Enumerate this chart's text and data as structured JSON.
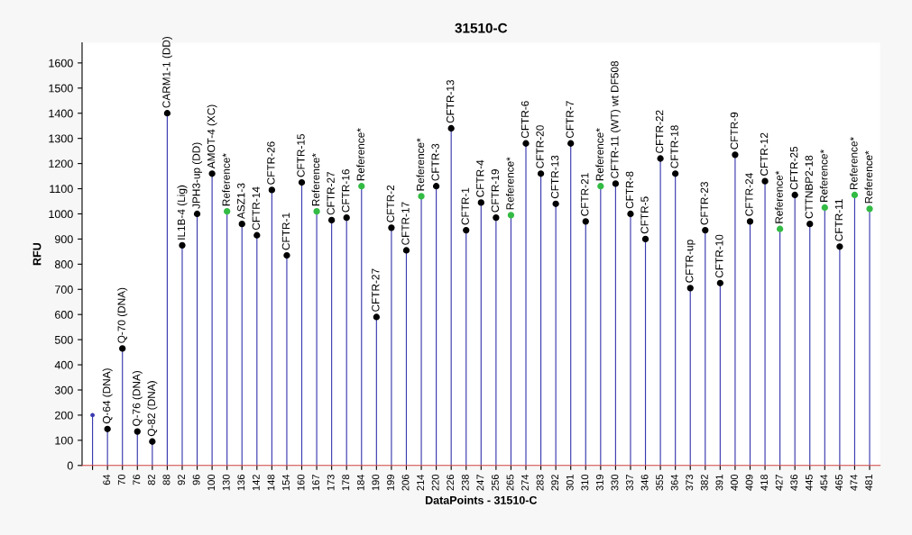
{
  "chart_data": {
    "type": "lollipop",
    "title": "31510-C",
    "xlabel": "DataPoints - 31510-C",
    "ylabel": "RFU",
    "categories": [
      null,
      "64",
      "70",
      "76",
      "82",
      "88",
      "92",
      "96",
      "100",
      "130",
      "136",
      "142",
      "148",
      "154",
      "160",
      "167",
      "173",
      "178",
      "184",
      "190",
      "199",
      "206",
      "214",
      "220",
      "226",
      "238",
      "247",
      "256",
      "265",
      "274",
      "283",
      "292",
      "301",
      "310",
      "319",
      "330",
      "337",
      "346",
      "355",
      "364",
      "373",
      "382",
      "391",
      "400",
      "409",
      "418",
      "427",
      "436",
      "445",
      "454",
      "465",
      "474",
      "481"
    ],
    "series": [
      {
        "color": "#3b3bb0",
        "values": [
          200,
          145,
          465,
          135,
          95,
          1400,
          875,
          1000,
          1160,
          1010,
          960,
          915,
          1095,
          835,
          1125,
          1010,
          975,
          985,
          1110,
          590,
          945,
          855,
          1070,
          1110,
          1340,
          935,
          1045,
          985,
          995,
          1280,
          1160,
          1040,
          1280,
          970,
          1110,
          1120,
          1000,
          900,
          1220,
          1160,
          705,
          935,
          725,
          1235,
          970,
          1130,
          940,
          1075,
          960,
          1025,
          870,
          1075,
          1020
        ],
        "colors": [
          null,
          "#000000",
          "#000000",
          "#000000",
          "#000000",
          "#000000",
          "#000000",
          "#000000",
          "#000000",
          "#33bb44",
          "#000000",
          "#000000",
          "#000000",
          "#000000",
          "#000000",
          "#33bb44",
          "#000000",
          "#000000",
          "#33bb44",
          "#000000",
          "#000000",
          "#000000",
          "#33bb44",
          "#000000",
          "#000000",
          "#000000",
          "#000000",
          "#000000",
          "#33bb44",
          "#000000",
          "#000000",
          "#000000",
          "#000000",
          "#000000",
          "#33bb44",
          "#000000",
          "#000000",
          "#000000",
          "#000000",
          "#000000",
          "#000000",
          "#000000",
          "#000000",
          "#000000",
          "#000000",
          "#000000",
          "#33bb44",
          "#000000",
          "#000000",
          "#33bb44",
          "#000000",
          "#33bb44",
          "#33bb44"
        ]
      }
    ],
    "ylim": [
      0,
      1680
    ],
    "yticks": [
      0,
      100,
      200,
      300,
      400,
      500,
      600,
      700,
      800,
      900,
      1000,
      1100,
      1200,
      1300,
      1400,
      1500,
      1600
    ],
    "grid": false,
    "annotations": [
      {
        "text": "Q-64 (DNA)",
        "x": "64",
        "y": 145
      },
      {
        "text": "Q-70 (DNA)",
        "x": "70",
        "y": 465
      },
      {
        "text": "Q-76 (DNA)",
        "x": "76",
        "y": 135
      },
      {
        "text": "Q-82 (DNA)",
        "x": "82",
        "y": 95
      },
      {
        "text": "CARM1-1 (DD)",
        "x": "88",
        "y": 1400
      },
      {
        "text": "IL1B-4 (Lig)",
        "x": "92",
        "y": 875
      },
      {
        "text": "JPH3-up (DD)",
        "x": "96",
        "y": 1000
      },
      {
        "text": "AMOT-4 (XC)",
        "x": "100",
        "y": 1160
      },
      {
        "text": "Reference*",
        "x": "130",
        "y": 1010
      },
      {
        "text": "ASZ1-3",
        "x": "136",
        "y": 960
      },
      {
        "text": "CFTR-14",
        "x": "142",
        "y": 915
      },
      {
        "text": "CFTR-26",
        "x": "148",
        "y": 1095
      },
      {
        "text": "CFTR-1",
        "x": "154",
        "y": 835
      },
      {
        "text": "CFTR-15",
        "x": "160",
        "y": 1125
      },
      {
        "text": "Reference*",
        "x": "167",
        "y": 1010
      },
      {
        "text": "CFTR-27",
        "x": "173",
        "y": 975
      },
      {
        "text": "CFTR-16",
        "x": "178",
        "y": 985
      },
      {
        "text": "Reference*",
        "x": "184",
        "y": 1110
      },
      {
        "text": "CFTR-27",
        "x": "190",
        "y": 590
      },
      {
        "text": "CFTR-2",
        "x": "199",
        "y": 945
      },
      {
        "text": "CFTR-17",
        "x": "206",
        "y": 855
      },
      {
        "text": "Reference*",
        "x": "214",
        "y": 1070
      },
      {
        "text": "CFTR-3",
        "x": "220",
        "y": 1110
      },
      {
        "text": "CFTR-13",
        "x": "226",
        "y": 1340
      },
      {
        "text": "CFTR-1",
        "x": "238",
        "y": 935
      },
      {
        "text": "CFTR-4",
        "x": "247",
        "y": 1045
      },
      {
        "text": "CFTR-19",
        "x": "256",
        "y": 985
      },
      {
        "text": "Reference*",
        "x": "265",
        "y": 995
      },
      {
        "text": "CFTR-6",
        "x": "274",
        "y": 1280
      },
      {
        "text": "CFTR-20",
        "x": "283",
        "y": 1160
      },
      {
        "text": "CFTR-13",
        "x": "292",
        "y": 1040
      },
      {
        "text": "CFTR-7",
        "x": "301",
        "y": 1280
      },
      {
        "text": "CFTR-21",
        "x": "310",
        "y": 970
      },
      {
        "text": "Reference*",
        "x": "319",
        "y": 1110
      },
      {
        "text": "CFTR-11 (WT) wt DF508",
        "x": "330",
        "y": 1120
      },
      {
        "text": "CFTR-8",
        "x": "337",
        "y": 1000
      },
      {
        "text": "CFTR-5",
        "x": "346",
        "y": 900
      },
      {
        "text": "CFTR-22",
        "x": "355",
        "y": 1220
      },
      {
        "text": "CFTR-18",
        "x": "364",
        "y": 1160
      },
      {
        "text": "CFTR-up",
        "x": "373",
        "y": 705
      },
      {
        "text": "CFTR-23",
        "x": "382",
        "y": 935
      },
      {
        "text": "CFTR-10",
        "x": "391",
        "y": 725
      },
      {
        "text": "CFTR-9",
        "x": "400",
        "y": 1235
      },
      {
        "text": "CFTR-24",
        "x": "409",
        "y": 970
      },
      {
        "text": "CFTR-12",
        "x": "418",
        "y": 1130
      },
      {
        "text": "Reference*",
        "x": "427",
        "y": 940
      },
      {
        "text": "CFTR-25",
        "x": "436",
        "y": 1075
      },
      {
        "text": "CTTNBP2-18",
        "x": "445",
        "y": 960
      },
      {
        "text": "Reference*",
        "x": "454",
        "y": 1025
      },
      {
        "text": "CFTR-11",
        "x": "465",
        "y": 870
      },
      {
        "text": "Reference*",
        "x": "474",
        "y": 1075
      },
      {
        "text": "Reference*",
        "x": "481",
        "y": 1020
      }
    ]
  }
}
